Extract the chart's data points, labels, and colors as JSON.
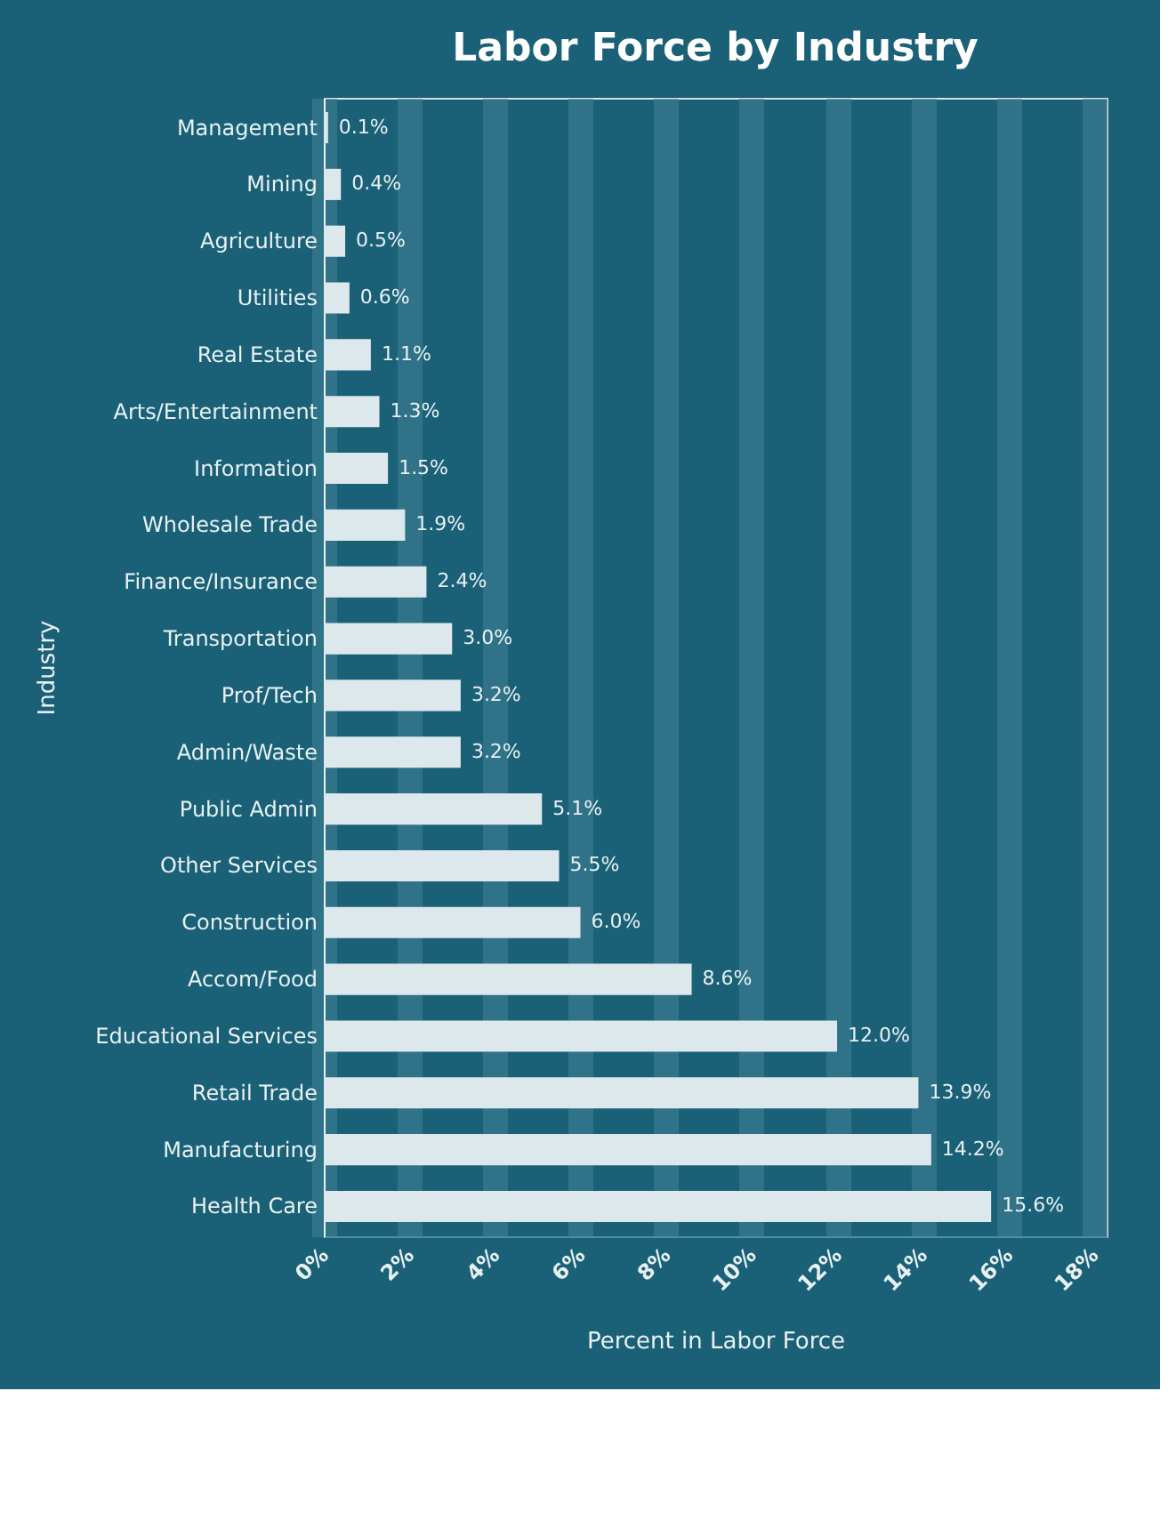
{
  "chart_data": {
    "type": "bar",
    "orientation": "horizontal",
    "title": "Labor Force by Industry",
    "xlabel": "Percent in Labor Force",
    "ylabel": "Industry",
    "categories": [
      "Management",
      "Mining",
      "Agriculture",
      "Utilities",
      "Real Estate",
      "Arts/Entertainment",
      "Information",
      "Wholesale Trade",
      "Finance/Insurance",
      "Transportation",
      "Prof/Tech",
      "Admin/Waste",
      "Public Admin",
      "Other Services",
      "Construction",
      "Accom/Food",
      "Educational Services",
      "Retail Trade",
      "Manufacturing",
      "Health Care"
    ],
    "values": [
      0.1,
      0.4,
      0.5,
      0.6,
      1.1,
      1.3,
      1.5,
      1.9,
      2.4,
      3.0,
      3.2,
      3.2,
      5.1,
      5.5,
      6.0,
      8.6,
      12.0,
      13.9,
      14.2,
      15.6
    ],
    "value_labels": [
      "0.1%",
      "0.4%",
      "0.5%",
      "0.6%",
      "1.1%",
      "1.3%",
      "1.5%",
      "1.9%",
      "2.4%",
      "3.0%",
      "3.2%",
      "3.2%",
      "5.1%",
      "5.5%",
      "6.0%",
      "8.6%",
      "12.0%",
      "13.9%",
      "14.2%",
      "15.6%"
    ],
    "color": "#dde8ec",
    "xlim": [
      0,
      18.3
    ],
    "xticks": [
      {
        "value": 0,
        "label": "0%"
      },
      {
        "value": 2,
        "label": "2%"
      },
      {
        "value": 4,
        "label": "4%"
      },
      {
        "value": 6,
        "label": "6%"
      },
      {
        "value": 8,
        "label": "8%"
      },
      {
        "value": 10,
        "label": "10%"
      },
      {
        "value": 12,
        "label": "12%"
      },
      {
        "value": 14,
        "label": "14%"
      },
      {
        "value": 16,
        "label": "16%"
      },
      {
        "value": 18,
        "label": "18%"
      }
    ],
    "grid": "x"
  }
}
